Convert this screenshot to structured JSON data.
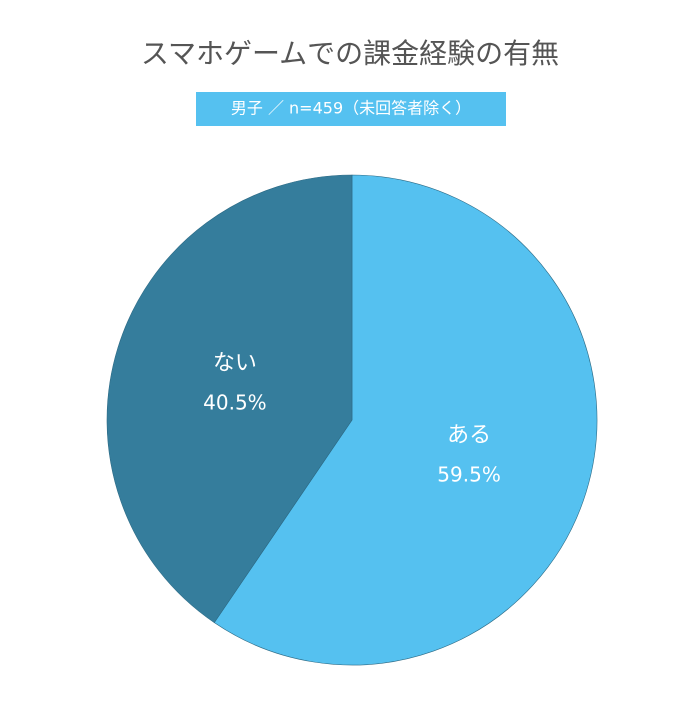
{
  "chart_data": {
    "type": "pie",
    "title": "スマホゲームでの課金経験の有無",
    "subtitle": "男子 ／ n=459（未回答者除く）",
    "categories": [
      "ある",
      "ない"
    ],
    "values": [
      59.5,
      40.5
    ],
    "value_labels": [
      "59.5%",
      "40.5%"
    ],
    "colors": [
      "#55c1f0",
      "#357d9c"
    ]
  }
}
